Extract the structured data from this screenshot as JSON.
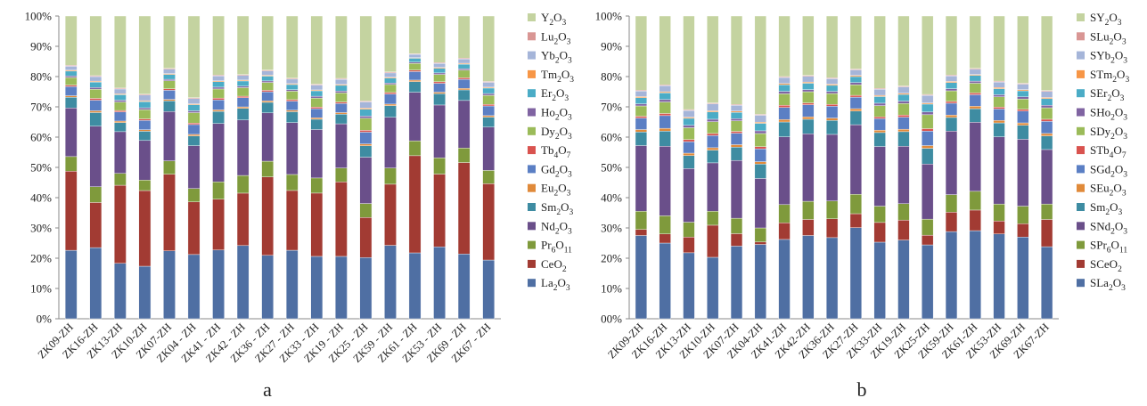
{
  "components": [
    {
      "key": "La2O3",
      "color": "#4f6fa3"
    },
    {
      "key": "CeO2",
      "color": "#a23b33"
    },
    {
      "key": "Pr6O11",
      "color": "#7f9a3c"
    },
    {
      "key": "Nd2O3",
      "color": "#6a4f8a"
    },
    {
      "key": "Sm2O3",
      "color": "#3e8ca2"
    },
    {
      "key": "Eu2O3",
      "color": "#e08a3a"
    },
    {
      "key": "Gd2O3",
      "color": "#5b7fc4"
    },
    {
      "key": "Tb4O7",
      "color": "#d9534f"
    },
    {
      "key": "Dy2O3",
      "color": "#9bbb59"
    },
    {
      "key": "Ho2O3",
      "color": "#8064a2"
    },
    {
      "key": "Er2O3",
      "color": "#4bacc6"
    },
    {
      "key": "Tm2O3",
      "color": "#f79646"
    },
    {
      "key": "Yb2O3",
      "color": "#a5b5d9"
    },
    {
      "key": "Lu2O3",
      "color": "#d99694"
    },
    {
      "key": "Y2O3",
      "color": "#c4d3a0"
    }
  ],
  "chart_data": [
    {
      "type": "bar",
      "stacked": true,
      "panel_label": "a",
      "yticks": [
        "0%",
        "10%",
        "20%",
        "30%",
        "40%",
        "50%",
        "60%",
        "70%",
        "80%",
        "90%",
        "100%"
      ],
      "ylim": [
        0,
        100
      ],
      "categories": [
        "ZK09-ZH",
        "ZK16-ZH",
        "ZK13-ZH",
        "ZK10-ZH",
        "ZK07-ZH",
        "ZK04 - ZH",
        "ZK41 - ZH",
        "ZK42 - ZH",
        "ZK36 - ZH",
        "ZK27 - ZH",
        "ZK33 - ZH",
        "ZK19 - ZH",
        "ZK25 - ZH",
        "ZK59 - ZH",
        "ZK61 - ZH",
        "ZK53 - ZH",
        "ZK69 - ZH",
        "ZK67 - ZH"
      ],
      "legend": [
        {
          "label": "Y",
          "sub": "2",
          "tail": "O",
          "sub2": "3"
        },
        {
          "label": "Lu",
          "sub": "2",
          "tail": "O",
          "sub2": "3"
        },
        {
          "label": "Yb",
          "sub": "2",
          "tail": "O",
          "sub2": "3"
        },
        {
          "label": "Tm",
          "sub": "2",
          "tail": "O",
          "sub2": "3"
        },
        {
          "label": "Er",
          "sub": "2",
          "tail": "O",
          "sub2": "3"
        },
        {
          "label": "Ho",
          "sub": "2",
          "tail": "O",
          "sub2": "3"
        },
        {
          "label": "Dy",
          "sub": "2",
          "tail": "O",
          "sub2": "3"
        },
        {
          "label": "Tb",
          "sub": "4",
          "tail": "O",
          "sub2": "7"
        },
        {
          "label": "Gd",
          "sub": "2",
          "tail": "O",
          "sub2": "3"
        },
        {
          "label": "Eu",
          "sub": "2",
          "tail": "O",
          "sub2": "3"
        },
        {
          "label": "Sm",
          "sub": "2",
          "tail": "O",
          "sub2": "3"
        },
        {
          "label": "Nd",
          "sub": "2",
          "tail": "O",
          "sub2": "3"
        },
        {
          "label": "Pr",
          "sub": "6",
          "tail": "O",
          "sub2": "11"
        },
        {
          "label": "CeO",
          "sub": "2",
          "tail": "",
          "sub2": ""
        },
        {
          "label": "La",
          "sub": "2",
          "tail": "O",
          "sub2": "3"
        }
      ],
      "series": [
        {
          "key": "La2O3",
          "values": [
            22.5,
            23.5,
            18.3,
            17.0,
            22.3,
            21.0,
            22.7,
            24.0,
            21.0,
            22.7,
            20.6,
            20.6,
            19.8,
            24.0,
            21.7,
            23.5,
            21.4,
            19.4
          ]
        },
        {
          "key": "CeO2",
          "values": [
            26.0,
            14.9,
            25.8,
            24.5,
            25.2,
            17.2,
            16.8,
            17.2,
            26.0,
            19.8,
            20.9,
            24.6,
            13.0,
            20.0,
            32.0,
            23.8,
            30.2,
            25.2
          ]
        },
        {
          "key": "Pr6O11",
          "values": [
            4.8,
            5.2,
            3.9,
            3.4,
            4.4,
            4.4,
            5.7,
            5.8,
            5.2,
            5.3,
            5.0,
            4.6,
            4.5,
            5.3,
            4.9,
            5.3,
            4.8,
            4.4
          ]
        },
        {
          "key": "Nd2O3",
          "values": [
            16.0,
            20.0,
            13.8,
            12.8,
            16.2,
            14.0,
            19.3,
            18.2,
            16.0,
            17.2,
            16.0,
            14.6,
            15.0,
            16.6,
            16.0,
            17.3,
            15.7,
            14.3
          ]
        },
        {
          "key": "Sm2O3",
          "values": [
            3.5,
            4.5,
            3.0,
            3.0,
            3.5,
            3.2,
            4.0,
            3.8,
            3.5,
            3.6,
            3.4,
            3.2,
            3.7,
            3.8,
            3.5,
            3.7,
            3.5,
            3.3
          ]
        },
        {
          "key": "Eu2O3",
          "values": [
            0.5,
            0.6,
            0.5,
            0.5,
            0.5,
            0.5,
            0.5,
            0.5,
            0.5,
            0.5,
            0.5,
            0.5,
            0.6,
            0.5,
            0.5,
            0.5,
            0.5,
            0.5
          ]
        },
        {
          "key": "Gd2O3",
          "values": [
            3.0,
            3.5,
            3.0,
            3.0,
            3.0,
            3.2,
            3.3,
            3.0,
            3.0,
            3.0,
            3.0,
            3.0,
            3.8,
            3.3,
            2.8,
            2.9,
            3.0,
            3.2
          ]
        },
        {
          "key": "Tb4O7",
          "values": [
            0.5,
            0.6,
            0.5,
            0.5,
            0.5,
            0.5,
            0.6,
            0.5,
            0.5,
            0.5,
            0.5,
            0.5,
            0.6,
            0.5,
            0.5,
            0.5,
            0.5,
            0.5
          ]
        },
        {
          "key": "Dy2O3",
          "values": [
            2.5,
            3.0,
            2.8,
            3.0,
            2.6,
            3.4,
            3.0,
            2.8,
            2.6,
            2.8,
            3.0,
            3.0,
            3.9,
            2.6,
            2.2,
            2.4,
            2.5,
            3.0
          ]
        },
        {
          "key": "Ho2O3",
          "values": [
            0.5,
            0.6,
            0.6,
            0.6,
            0.5,
            0.6,
            0.6,
            0.5,
            0.5,
            0.5,
            0.6,
            0.6,
            0.7,
            0.5,
            0.4,
            0.5,
            0.5,
            0.6
          ]
        },
        {
          "key": "Er2O3",
          "values": [
            1.6,
            1.8,
            1.8,
            2.0,
            1.6,
            2.0,
            1.8,
            1.7,
            1.6,
            1.7,
            1.8,
            1.9,
            2.2,
            1.6,
            1.3,
            1.5,
            1.5,
            1.8
          ]
        },
        {
          "key": "Tm2O3",
          "values": [
            0.3,
            0.3,
            0.3,
            0.3,
            0.3,
            0.3,
            0.3,
            0.3,
            0.3,
            0.3,
            0.3,
            0.3,
            0.4,
            0.3,
            0.2,
            0.3,
            0.3,
            0.3
          ]
        },
        {
          "key": "Yb2O3",
          "values": [
            1.3,
            1.5,
            1.6,
            1.8,
            1.4,
            1.7,
            1.6,
            1.5,
            1.4,
            1.5,
            1.6,
            1.7,
            2.0,
            1.4,
            1.1,
            1.3,
            1.4,
            1.6
          ]
        },
        {
          "key": "Lu2O3",
          "values": [
            0.3,
            0.3,
            0.3,
            0.3,
            0.3,
            0.3,
            0.3,
            0.3,
            0.3,
            0.3,
            0.3,
            0.3,
            0.3,
            0.3,
            0.2,
            0.3,
            0.3,
            0.3
          ]
        },
        {
          "key": "Y2O3",
          "values": [
            16.2,
            19.7,
            23.8,
            25.3,
            17.2,
            26.7,
            19.5,
            19.2,
            17.9,
            20.6,
            22.5,
            20.6,
            27.5,
            18.3,
            12.4,
            15.2,
            13.9,
            21.6
          ]
        }
      ]
    },
    {
      "type": "bar",
      "stacked": true,
      "panel_label": "b",
      "yticks": [
        "00%",
        "10%",
        "20%",
        "30%",
        "40%",
        "50%",
        "60%",
        "70%",
        "80%",
        "90%",
        "100%"
      ],
      "ylim": [
        0,
        100
      ],
      "categories": [
        "ZK09-ZH",
        "ZK16-ZH",
        "ZK13-ZH",
        "ZK10-ZH",
        "ZK07-ZH",
        "ZK04-ZH",
        "ZK41-ZH",
        "ZK42-ZH",
        "ZK36-ZH",
        "ZK27-ZH",
        "ZK33-ZH",
        "ZK19-ZH",
        "ZK25-ZH",
        "ZK59-ZH",
        "ZK61-ZH",
        "ZK53-ZH",
        "ZK69-ZH",
        "ZK67-ZH"
      ],
      "legend": [
        {
          "label": "SY",
          "sub": "2",
          "tail": "O",
          "sub2": "3"
        },
        {
          "label": "SLu",
          "sub": "2",
          "tail": "O",
          "sub2": "3"
        },
        {
          "label": "SYb",
          "sub": "2",
          "tail": "O",
          "sub2": "3"
        },
        {
          "label": "STm",
          "sub": "2",
          "tail": "O",
          "sub2": "3"
        },
        {
          "label": "SEr",
          "sub": "2",
          "tail": "O",
          "sub2": "3"
        },
        {
          "label": "SHo",
          "sub": "2",
          "tail": "O",
          "sub2": "3"
        },
        {
          "label": "SDy",
          "sub": "2",
          "tail": "O",
          "sub2": "3"
        },
        {
          "label": "STb",
          "sub": "4",
          "tail": "O",
          "sub2": "7"
        },
        {
          "label": "SGd",
          "sub": "2",
          "tail": "O",
          "sub2": "3"
        },
        {
          "label": "SEu",
          "sub": "2",
          "tail": "O",
          "sub2": "3"
        },
        {
          "label": "Sm",
          "sub": "2",
          "tail": "O",
          "sub2": "3"
        },
        {
          "label": "SNd",
          "sub": "2",
          "tail": "O",
          "sub2": "3"
        },
        {
          "label": "SPr",
          "sub": "6",
          "tail": "O",
          "sub2": "11"
        },
        {
          "label": "SCeO",
          "sub": "2",
          "tail": "",
          "sub2": ""
        },
        {
          "label": "SLa",
          "sub": "2",
          "tail": "O",
          "sub2": "3"
        }
      ],
      "series": [
        {
          "key": "La2O3",
          "values": [
            27.5,
            25.0,
            21.8,
            20.3,
            24.0,
            24.8,
            26.2,
            27.5,
            26.8,
            30.1,
            25.3,
            26.0,
            24.4,
            28.8,
            29.1,
            28.0,
            27.0,
            23.8
          ]
        },
        {
          "key": "CeO2",
          "values": [
            2.0,
            3.0,
            5.2,
            10.6,
            4.1,
            0.8,
            5.5,
            5.3,
            6.2,
            4.6,
            6.5,
            6.6,
            3.2,
            6.4,
            6.8,
            4.3,
            4.4,
            9.0
          ]
        },
        {
          "key": "Pr6O11",
          "values": [
            6.0,
            6.0,
            4.9,
            4.6,
            5.1,
            4.7,
            6.0,
            6.0,
            5.9,
            6.4,
            5.4,
            5.4,
            5.3,
            5.8,
            6.2,
            5.6,
            5.8,
            5.1
          ]
        },
        {
          "key": "Nd2O3",
          "values": [
            21.7,
            23.0,
            17.7,
            16.0,
            19.1,
            16.5,
            22.4,
            22.3,
            22.0,
            23.0,
            19.7,
            19.0,
            18.2,
            21.0,
            22.8,
            22.2,
            22.1,
            18.0
          ]
        },
        {
          "key": "Sm2O3",
          "values": [
            4.5,
            5.0,
            4.3,
            4.2,
            4.4,
            4.8,
            4.9,
            4.8,
            4.6,
            4.5,
            4.6,
            4.8,
            5.2,
            4.5,
            4.5,
            4.6,
            4.6,
            4.5
          ]
        },
        {
          "key": "Eu2O3",
          "values": [
            0.8,
            0.9,
            0.8,
            0.8,
            0.8,
            0.8,
            0.8,
            0.8,
            0.8,
            0.8,
            0.8,
            0.8,
            0.9,
            0.8,
            0.8,
            0.8,
            0.8,
            0.8
          ]
        },
        {
          "key": "Gd2O3",
          "values": [
            3.8,
            4.2,
            3.8,
            4.0,
            3.8,
            4.3,
            4.0,
            4.0,
            3.9,
            3.8,
            3.8,
            4.0,
            4.8,
            3.9,
            3.8,
            3.8,
            3.9,
            4.0
          ]
        },
        {
          "key": "Tb4O7",
          "values": [
            0.6,
            0.7,
            0.7,
            0.7,
            0.6,
            0.7,
            0.7,
            0.6,
            0.6,
            0.6,
            0.6,
            0.7,
            0.8,
            0.6,
            0.6,
            0.6,
            0.6,
            0.7
          ]
        },
        {
          "key": "Dy2O3",
          "values": [
            3.4,
            3.8,
            3.9,
            3.9,
            3.5,
            4.4,
            3.8,
            3.7,
            3.6,
            3.5,
            3.7,
            3.8,
            4.6,
            3.5,
            3.2,
            3.4,
            3.4,
            3.8
          ]
        },
        {
          "key": "Ho2O3",
          "values": [
            0.7,
            0.8,
            0.8,
            0.8,
            0.7,
            0.9,
            0.8,
            0.7,
            0.7,
            0.7,
            0.8,
            0.8,
            0.9,
            0.7,
            0.7,
            0.7,
            0.7,
            0.8
          ]
        },
        {
          "key": "Er2O3",
          "values": [
            2.0,
            2.2,
            2.3,
            2.4,
            2.1,
            2.5,
            2.2,
            2.1,
            2.0,
            2.0,
            2.2,
            2.2,
            2.6,
            2.0,
            1.9,
            2.0,
            2.0,
            2.2
          ]
        },
        {
          "key": "Tm2O3",
          "values": [
            0.4,
            0.4,
            0.4,
            0.4,
            0.4,
            0.4,
            0.4,
            0.4,
            0.4,
            0.4,
            0.4,
            0.4,
            0.4,
            0.4,
            0.3,
            0.4,
            0.4,
            0.4
          ]
        },
        {
          "key": "Yb2O3",
          "values": [
            1.8,
            2.0,
            2.2,
            2.3,
            1.9,
            2.3,
            2.0,
            1.9,
            1.8,
            1.8,
            2.0,
            2.1,
            2.5,
            1.8,
            1.7,
            1.8,
            1.8,
            2.0
          ]
        },
        {
          "key": "Lu2O3",
          "values": [
            0.3,
            0.3,
            0.3,
            0.3,
            0.3,
            0.3,
            0.3,
            0.3,
            0.3,
            0.3,
            0.3,
            0.3,
            0.3,
            0.3,
            0.3,
            0.3,
            0.3,
            0.3
          ]
        },
        {
          "key": "Y2O3",
          "values": [
            24.5,
            22.7,
            30.9,
            28.7,
            29.2,
            32.8,
            20.0,
            19.6,
            20.4,
            17.5,
            23.9,
            23.1,
            25.9,
            19.5,
            17.3,
            21.5,
            22.2,
            24.6
          ]
        }
      ]
    }
  ]
}
